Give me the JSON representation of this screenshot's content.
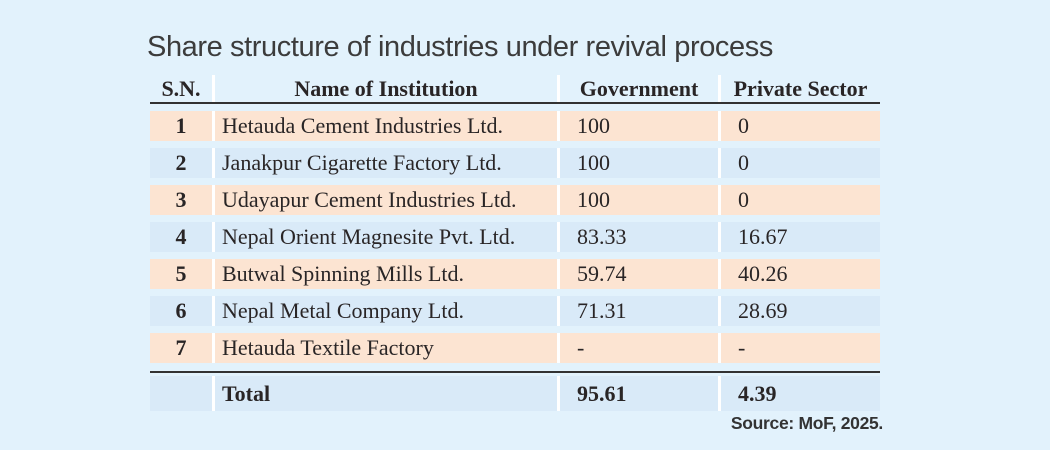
{
  "title": "Share structure of industries under revival process",
  "source_note": "Source: MoF, 2025.",
  "chart_data": {
    "type": "table",
    "title": "Share structure of industries under revival process",
    "columns": [
      "S.N.",
      "Name of Institution",
      "Government",
      "Private Sector"
    ],
    "rows": [
      [
        "1",
        "Hetauda Cement Industries Ltd.",
        "100",
        "0"
      ],
      [
        "2",
        "Janakpur Cigarette Factory Ltd.",
        "100",
        "0"
      ],
      [
        "3",
        "Udayapur Cement Industries Ltd.",
        "100",
        "0"
      ],
      [
        "4",
        "Nepal Orient Magnesite Pvt. Ltd.",
        "83.33",
        "16.67"
      ],
      [
        "5",
        "Butwal Spinning Mills Ltd.",
        "59.74",
        "40.26"
      ],
      [
        "6",
        "Nepal Metal Company Ltd.",
        "71.31",
        "28.69"
      ],
      [
        "7",
        "Hetauda Textile Factory",
        "-",
        "-"
      ]
    ],
    "total_row": {
      "label": "Total",
      "government": "95.61",
      "private_sector": "4.39"
    },
    "source": "Source: MoF, 2025.",
    "layout": {
      "legend": "none",
      "grid": "off",
      "row_striping": "odd rows peach, even rows light blue"
    }
  },
  "colors": {
    "page_background": "#e2f2fc",
    "odd_row_background": "#fce4d2",
    "even_row_background": "#d9eaf8",
    "total_row_background": "#d9eaf8",
    "separator_white": "#ffffff",
    "rule_dark": "#323232",
    "text": "#292526",
    "title_text": "#3c3c3c"
  }
}
